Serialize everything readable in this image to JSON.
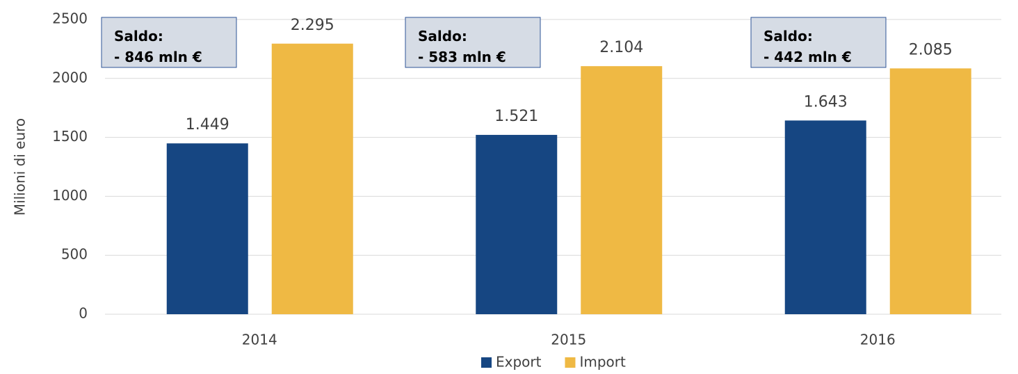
{
  "chart_data": {
    "type": "bar",
    "y_label": "Milioni di euro",
    "categories": [
      "2014",
      "2015",
      "2016"
    ],
    "series": [
      {
        "name": "Export",
        "color": "#164682",
        "values": [
          1449,
          1521,
          1643
        ],
        "value_labels": [
          "1.449",
          "1.521",
          "1.643"
        ]
      },
      {
        "name": "Import",
        "color": "#efb944",
        "values": [
          2295,
          2104,
          2085
        ],
        "value_labels": [
          "2.295",
          "2.104",
          "2.085"
        ]
      }
    ],
    "ylim": [
      0,
      2500
    ],
    "yticks": [
      0,
      500,
      1000,
      1500,
      2000,
      2500
    ],
    "grid": true,
    "legend": "bottom",
    "annotations": [
      [
        "Saldo:",
        "- 846 mln €"
      ],
      [
        "Saldo:",
        "- 583 mln €"
      ],
      [
        "Saldo:",
        "- 442 mln €"
      ]
    ]
  }
}
